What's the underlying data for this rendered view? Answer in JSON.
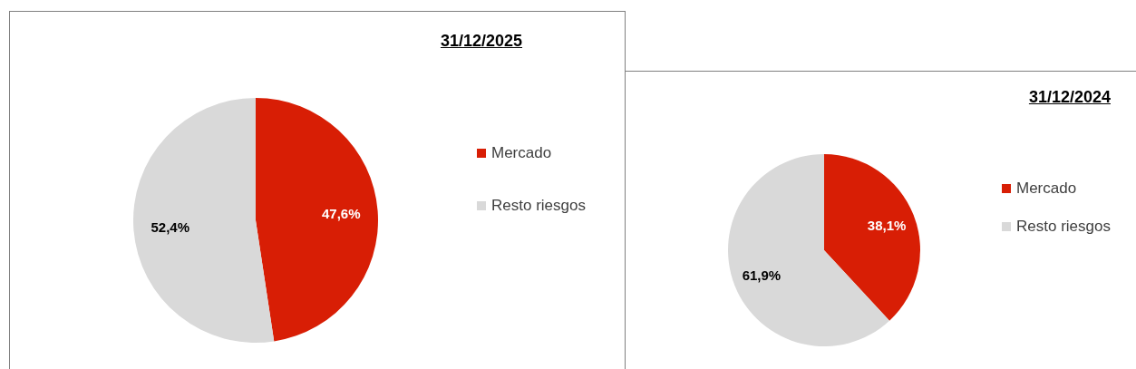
{
  "chart_data": [
    {
      "type": "pie",
      "title": "31/12/2025",
      "categories": [
        "Mercado",
        "Resto riesgos"
      ],
      "values": [
        47.6,
        52.4
      ],
      "colors": [
        "#d81e05",
        "#d9d9d9"
      ],
      "value_labels": [
        "47,6%",
        "52,4%"
      ],
      "legend": "right"
    },
    {
      "type": "pie",
      "title": "31/12/2024",
      "categories": [
        "Mercado",
        "Resto riesgos"
      ],
      "values": [
        38.1,
        61.9
      ],
      "colors": [
        "#d81e05",
        "#d9d9d9"
      ],
      "value_labels": [
        "38,1%",
        "61,9%"
      ],
      "legend": "right"
    }
  ]
}
